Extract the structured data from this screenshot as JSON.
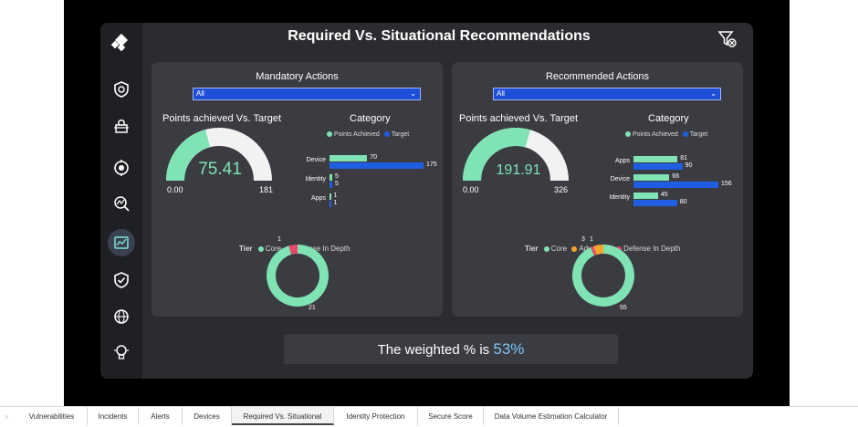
{
  "header": {
    "title": "Required Vs. Situational Recommendations"
  },
  "colors": {
    "core": "#7fe3b4",
    "target": "#1f5ee0",
    "defense": "#e8486a",
    "advanced": "#f4a62a",
    "gauge_bg": "#f2f2f2"
  },
  "rail": {
    "icons": [
      "logo-icon",
      "defender-shield-icon",
      "lock-icon",
      "settings-scan-icon",
      "threat-analytics-icon",
      "secure-score-icon",
      "shield-check-icon",
      "data-globe-icon",
      "lightbulb-icon"
    ]
  },
  "mandatory": {
    "title": "Mandatory Actions",
    "filter_value": "All",
    "gauge": {
      "title": "Points achieved Vs. Target",
      "value": "75.41",
      "value_num": 75.41,
      "min": "0.00",
      "max": "181",
      "max_num": 181
    },
    "category": {
      "title": "Category",
      "legend": [
        "Points Achieved",
        "Target"
      ],
      "rows": [
        {
          "label": "Device",
          "achieved": 70,
          "target": 175,
          "achieved_text": "70",
          "target_text": "175"
        },
        {
          "label": "Identity",
          "achieved": 5,
          "target": 5,
          "achieved_text": "5",
          "target_text": "5"
        },
        {
          "label": "Apps",
          "achieved": 1,
          "target": 1,
          "achieved_text": "1",
          "target_text": "1"
        }
      ],
      "scale_max": 175
    },
    "tier": {
      "label": "Tier",
      "legend": [
        "Core",
        "Defense In Depth"
      ],
      "slices": [
        {
          "name": "Core",
          "value": 21,
          "text": "21"
        },
        {
          "name": "Defense In Depth",
          "value": 1,
          "text": "1"
        }
      ]
    }
  },
  "recommended": {
    "title": "Recommended Actions",
    "filter_value": "All",
    "gauge": {
      "title": "Points achieved Vs. Target",
      "value": "191.91",
      "value_num": 191.91,
      "min": "0.00",
      "max": "326",
      "max_num": 326
    },
    "category": {
      "title": "Category",
      "legend": [
        "Points Achieved",
        "Target"
      ],
      "rows": [
        {
          "label": "Apps",
          "achieved": 81,
          "target": 90,
          "achieved_text": "81",
          "target_text": "90"
        },
        {
          "label": "Device",
          "achieved": 66,
          "target": 156,
          "achieved_text": "66",
          "target_text": "156"
        },
        {
          "label": "Identity",
          "achieved": 45,
          "target": 80,
          "achieved_text": "45",
          "target_text": "80"
        }
      ],
      "scale_max": 156
    },
    "tier": {
      "label": "Tier",
      "legend": [
        "Core",
        "Advanced",
        "Defense In Depth"
      ],
      "slices": [
        {
          "name": "Core",
          "value": 55,
          "text": "55"
        },
        {
          "name": "Advanced",
          "value": 3,
          "text": "3"
        },
        {
          "name": "Defense In Depth",
          "value": 1,
          "text": "1"
        }
      ]
    }
  },
  "weighted": {
    "prefix": "The weighted % is",
    "value": "53%"
  },
  "tabs": [
    "Vulnerabilities",
    "Incidents",
    "Alerts",
    "Devices",
    "Required Vs. Situational",
    "Identity Protection",
    "Secure Score",
    "Data Volume Estimation Calculator"
  ],
  "active_tab": "Required Vs. Situational"
}
